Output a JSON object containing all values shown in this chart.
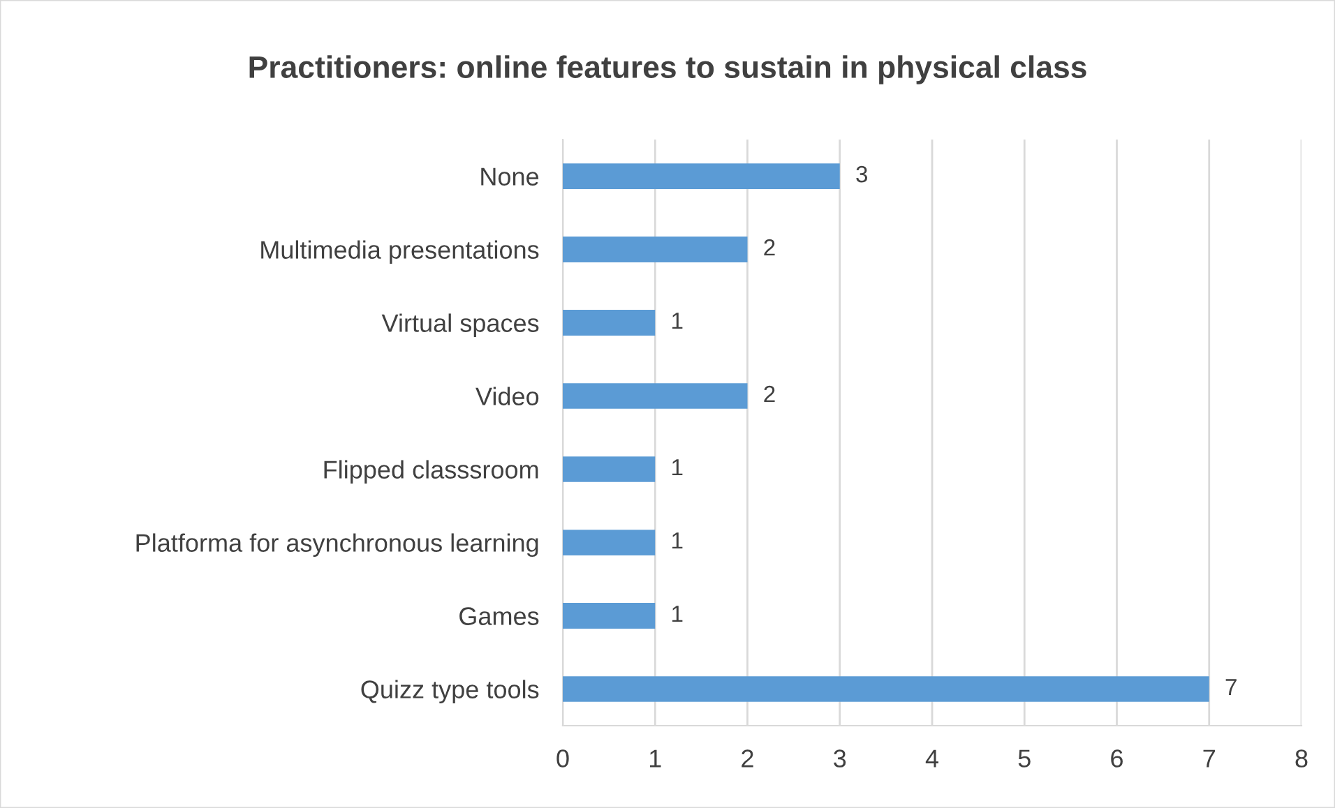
{
  "chart_data": {
    "type": "bar",
    "orientation": "horizontal",
    "title": "Practitioners: online features to sustain in physical class",
    "categories": [
      "None",
      "Multimedia presentations",
      "Virtual spaces",
      "Video",
      "Flipped classsroom",
      "Platforma for asynchronous learning",
      "Games",
      "Quizz type tools"
    ],
    "values": [
      3,
      2,
      1,
      2,
      1,
      1,
      1,
      7
    ],
    "color": "#5b9bd5",
    "xlim": [
      0,
      8
    ],
    "xticks": [
      0,
      1,
      2,
      3,
      4,
      5,
      6,
      7,
      8
    ],
    "grid": "x",
    "data_labels": true,
    "legend": false
  }
}
